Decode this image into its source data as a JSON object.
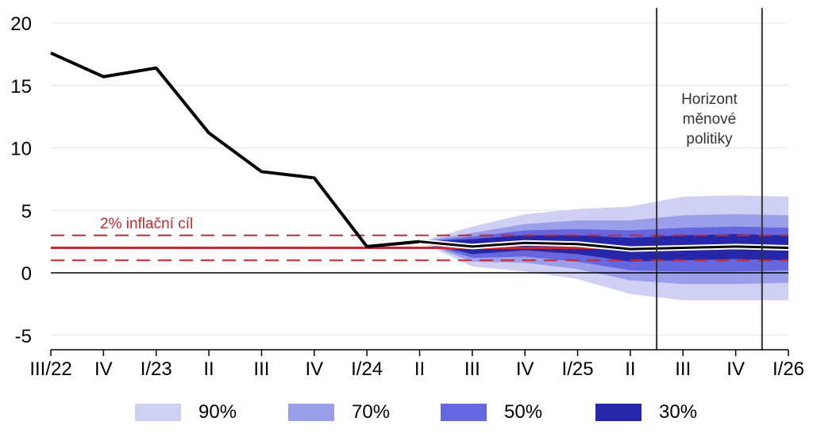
{
  "chart_data": {
    "type": "line",
    "categories": [
      "III/22",
      "IV",
      "I/23",
      "II",
      "III",
      "IV",
      "I/24",
      "II",
      "III",
      "IV",
      "I/25",
      "II",
      "III",
      "IV",
      "I/26"
    ],
    "actual": {
      "values": [
        17.6,
        15.7,
        16.4,
        11.2,
        8.1,
        7.6,
        2.1,
        2.5,
        null,
        null,
        null,
        null,
        null,
        null,
        null
      ],
      "color": "#000000"
    },
    "forecast": {
      "x_start": 7,
      "center": [
        2.5,
        2.1,
        2.4,
        2.3,
        1.9,
        2.0,
        2.1,
        2.0
      ],
      "bands": [
        {
          "name": "90%",
          "color": "#cfd0f3",
          "lower": [
            2.5,
            0.5,
            0.1,
            -0.5,
            -1.7,
            -2.2,
            -2.2,
            -2.2
          ],
          "upper": [
            2.5,
            3.7,
            4.7,
            5.1,
            5.3,
            6.1,
            6.2,
            6.1
          ]
        },
        {
          "name": "70%",
          "color": "#9b9ee9",
          "lower": [
            2.5,
            0.9,
            0.8,
            0.3,
            -0.6,
            -0.9,
            -0.9,
            -0.8
          ],
          "upper": [
            2.5,
            3.2,
            3.9,
            4.2,
            4.2,
            4.6,
            4.7,
            4.6
          ]
        },
        {
          "name": "50%",
          "color": "#6467e0",
          "lower": [
            2.5,
            1.2,
            1.3,
            0.9,
            0.2,
            0.1,
            0.1,
            0.2
          ],
          "upper": [
            2.5,
            2.9,
            3.4,
            3.5,
            3.4,
            3.6,
            3.7,
            3.6
          ]
        },
        {
          "name": "30%",
          "color": "#2527a8",
          "lower": [
            2.5,
            1.5,
            1.8,
            1.5,
            0.9,
            1.0,
            1.1,
            1.0
          ],
          "upper": [
            2.5,
            2.7,
            3.0,
            3.0,
            2.8,
            3.0,
            3.1,
            3.0
          ]
        }
      ]
    },
    "target": {
      "value": 2,
      "tolerance": [
        1,
        3
      ],
      "label": "2% inflační cíl",
      "color": "#c8282c"
    },
    "policy_horizon": {
      "x_range": [
        11.5,
        13.5
      ],
      "label_lines": [
        "Horizont",
        "měnové",
        "politiky"
      ]
    },
    "yticks": [
      -5,
      0,
      5,
      10,
      15,
      20
    ],
    "ylim": [
      -5.5,
      21
    ],
    "grid": "horizontal",
    "legend_position": "bottom"
  }
}
